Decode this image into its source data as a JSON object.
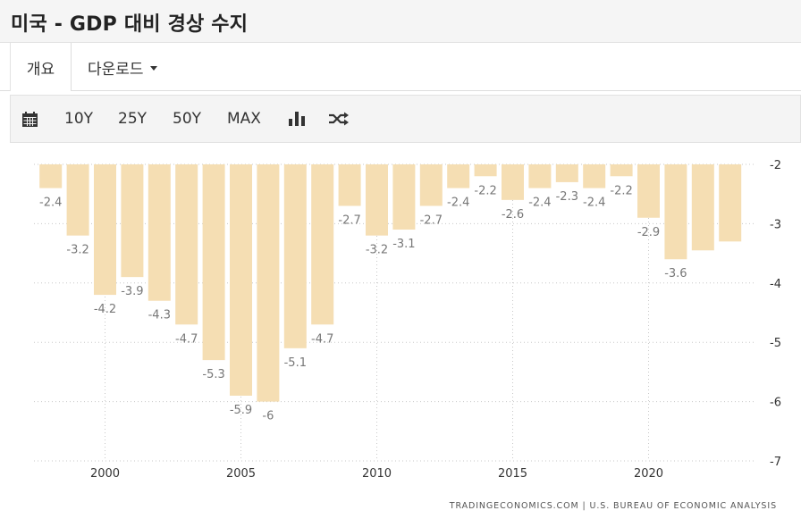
{
  "page": {
    "title": "미국 - GDP 대비 경상 수지"
  },
  "nav": {
    "tab_overview": "개요",
    "tab_download": "다운로드"
  },
  "toolbar": {
    "calendar_icon": "calendar-icon",
    "range_10y": "10Y",
    "range_25y": "25Y",
    "range_50y": "50Y",
    "range_max": "MAX",
    "bar_chart_icon": "bar-chart-icon",
    "shuffle_icon": "shuffle-icon"
  },
  "chart_data": {
    "type": "bar",
    "categories": [
      "1998",
      "1999",
      "2000",
      "2001",
      "2002",
      "2003",
      "2004",
      "2005",
      "2006",
      "2007",
      "2008",
      "2009",
      "2010",
      "2011",
      "2012",
      "2013",
      "2014",
      "2015",
      "2016",
      "2017",
      "2018",
      "2019",
      "2020",
      "2021",
      "2022",
      "2023"
    ],
    "values": [
      -2.4,
      -3.2,
      -4.2,
      -3.9,
      -4.3,
      -4.7,
      -5.3,
      -5.9,
      -6,
      -5.1,
      -4.7,
      -2.7,
      -3.2,
      -3.1,
      -2.7,
      -2.4,
      -2.2,
      -2.6,
      -2.4,
      -2.3,
      -2.4,
      -2.2,
      -2.9,
      -3.6,
      -3.45,
      -3.3
    ],
    "labels": [
      "-2.4",
      "-3.2",
      "-4.2",
      "-3.9",
      "-4.3",
      "-4.7",
      "-5.3",
      "-5.9",
      "-6",
      "-5.1",
      "-4.7",
      "-2.7",
      "-3.2",
      "-3.1",
      "-2.7",
      "-2.4",
      "-2.2",
      "-2.6",
      "-2.4",
      "-2.3",
      "-2.4",
      "-2.2",
      "-2.9",
      "-3.6",
      "",
      ""
    ],
    "x_ticks": [
      "2000",
      "2005",
      "2010",
      "2015",
      "2020"
    ],
    "y_ticks": [
      "-2",
      "-3",
      "-4",
      "-5",
      "-6",
      "-7"
    ],
    "ylim": [
      -7,
      -2
    ],
    "grid": true,
    "title": "",
    "xlabel": "",
    "ylabel": "",
    "bar_color": "#f5deb3",
    "label_color": "#777777",
    "source": "TRADINGECONOMICS.COM | U.S. BUREAU OF ECONOMIC ANALYSIS"
  }
}
